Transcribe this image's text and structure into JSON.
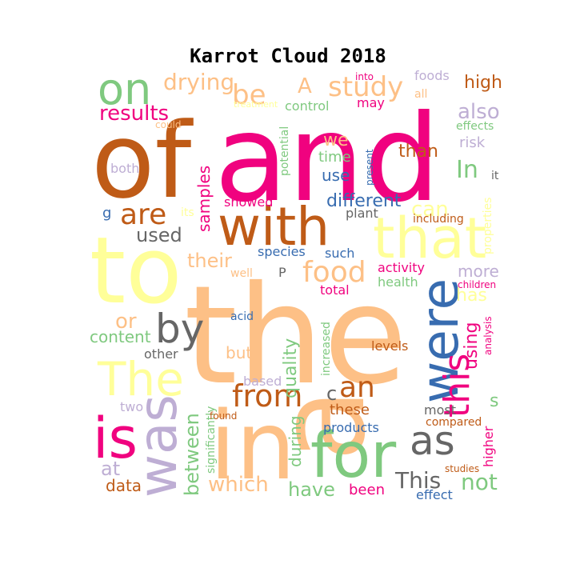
{
  "title": "Karrot Cloud 2018",
  "colors": {
    "green": "#7fc97f",
    "lavender": "#beaed4",
    "peach": "#fdc086",
    "yellow": "#ffff99",
    "blue": "#386cb0",
    "magenta": "#f0027f",
    "brown": "#bf5b17",
    "gray": "#666666"
  },
  "words": [
    {
      "text": "the",
      "color": "peach"
    },
    {
      "text": "and",
      "color": "magenta"
    },
    {
      "text": "of",
      "color": "brown"
    },
    {
      "text": "to",
      "color": "yellow"
    },
    {
      "text": "in",
      "color": "peach"
    },
    {
      "text": "a",
      "color": "peach"
    },
    {
      "text": "with",
      "color": "brown"
    },
    {
      "text": "that",
      "color": "yellow"
    },
    {
      "text": "for",
      "color": "green"
    },
    {
      "text": "were",
      "color": "blue"
    },
    {
      "text": "The",
      "color": "yellow"
    },
    {
      "text": "was",
      "color": "lavender"
    },
    {
      "text": "is",
      "color": "magenta"
    },
    {
      "text": "as",
      "color": "gray"
    },
    {
      "text": "on",
      "color": "green"
    },
    {
      "text": "by",
      "color": "gray"
    },
    {
      "text": "from",
      "color": "brown"
    },
    {
      "text": "are",
      "color": "brown"
    },
    {
      "text": "this",
      "color": "magenta"
    },
    {
      "text": "an",
      "color": "brown"
    },
    {
      "text": "food",
      "color": "peach"
    },
    {
      "text": "study",
      "color": "peach"
    },
    {
      "text": "be",
      "color": "peach"
    },
    {
      "text": "drying",
      "color": "peach"
    },
    {
      "text": "results",
      "color": "magenta"
    },
    {
      "text": "A",
      "color": "peach"
    },
    {
      "text": "In",
      "color": "green"
    },
    {
      "text": "also",
      "color": "lavender"
    },
    {
      "text": "high",
      "color": "brown"
    },
    {
      "text": "than",
      "color": "brown"
    },
    {
      "text": "can",
      "color": "yellow"
    },
    {
      "text": "different",
      "color": "blue"
    },
    {
      "text": "used",
      "color": "gray"
    },
    {
      "text": "their",
      "color": "peach"
    },
    {
      "text": "or",
      "color": "peach"
    },
    {
      "text": "content",
      "color": "green"
    },
    {
      "text": "which",
      "color": "peach"
    },
    {
      "text": "between",
      "color": "green"
    },
    {
      "text": "at",
      "color": "lavender"
    },
    {
      "text": "data",
      "color": "brown"
    },
    {
      "text": "have",
      "color": "green"
    },
    {
      "text": "This",
      "color": "gray"
    },
    {
      "text": "not",
      "color": "green"
    },
    {
      "text": "quality",
      "color": "green"
    },
    {
      "text": "during",
      "color": "green"
    },
    {
      "text": "using",
      "color": "magenta"
    },
    {
      "text": "has",
      "color": "yellow"
    },
    {
      "text": "more",
      "color": "lavender"
    },
    {
      "text": "samples",
      "color": "magenta"
    },
    {
      "text": "we",
      "color": "peach"
    },
    {
      "text": "use",
      "color": "blue"
    },
    {
      "text": "time",
      "color": "green"
    },
    {
      "text": "control",
      "color": "green"
    },
    {
      "text": "may",
      "color": "magenta"
    },
    {
      "text": "foods",
      "color": "lavender"
    },
    {
      "text": "into",
      "color": "magenta"
    },
    {
      "text": "all",
      "color": "peach"
    },
    {
      "text": "risk",
      "color": "lavender"
    },
    {
      "text": "effects",
      "color": "green"
    },
    {
      "text": "it",
      "color": "gray"
    },
    {
      "text": "could",
      "color": "peach"
    },
    {
      "text": "both",
      "color": "lavender"
    },
    {
      "text": "treatment",
      "color": "yellow"
    },
    {
      "text": "potential",
      "color": "green"
    },
    {
      "text": "present",
      "color": "blue"
    },
    {
      "text": "its",
      "color": "yellow"
    },
    {
      "text": "g",
      "color": "blue"
    },
    {
      "text": "showed",
      "color": "magenta"
    },
    {
      "text": "plant",
      "color": "gray"
    },
    {
      "text": "including",
      "color": "brown"
    },
    {
      "text": "properties",
      "color": "yellow"
    },
    {
      "text": "species",
      "color": "blue"
    },
    {
      "text": "such",
      "color": "blue"
    },
    {
      "text": "well",
      "color": "peach"
    },
    {
      "text": "P",
      "color": "gray"
    },
    {
      "text": "activity",
      "color": "magenta"
    },
    {
      "text": "health",
      "color": "green"
    },
    {
      "text": "children",
      "color": "magenta"
    },
    {
      "text": "total",
      "color": "magenta"
    },
    {
      "text": "acid",
      "color": "blue"
    },
    {
      "text": "increased",
      "color": "green"
    },
    {
      "text": "levels",
      "color": "brown"
    },
    {
      "text": "analysis",
      "color": "magenta"
    },
    {
      "text": "other",
      "color": "gray"
    },
    {
      "text": "but",
      "color": "peach"
    },
    {
      "text": "based",
      "color": "lavender"
    },
    {
      "text": "c",
      "color": "gray"
    },
    {
      "text": "two",
      "color": "lavender"
    },
    {
      "text": "significantly",
      "color": "green"
    },
    {
      "text": "found",
      "color": "brown"
    },
    {
      "text": "these",
      "color": "brown"
    },
    {
      "text": "most",
      "color": "gray"
    },
    {
      "text": "compared",
      "color": "brown"
    },
    {
      "text": "products",
      "color": "blue"
    },
    {
      "text": "higher",
      "color": "magenta"
    },
    {
      "text": "s",
      "color": "green"
    },
    {
      "text": "studies",
      "color": "brown"
    },
    {
      "text": "been",
      "color": "magenta"
    },
    {
      "text": "effect",
      "color": "blue"
    }
  ]
}
